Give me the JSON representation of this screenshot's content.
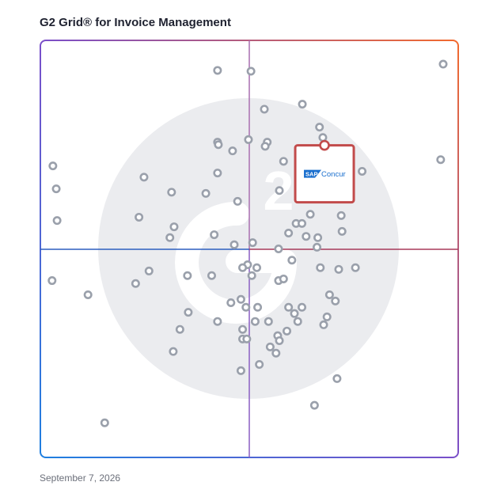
{
  "title": "G2 Grid® for Invoice Management",
  "date": "September 7, 2026",
  "colors": {
    "frame_left": "#1e7fe0",
    "frame_mid": "#7a4fc9",
    "frame_right": "#f26a2e",
    "quadrant_line_top": "#a65aa3",
    "quadrant_line_bottom": "#9b3aa0",
    "quadrant_line_h_left": "#2d5fbf",
    "quadrant_line_h_right": "#a83a5a",
    "point": "#9aa0ab",
    "watermark": "#ebecef",
    "highlight": "#c24b4b",
    "logo_blue": "#1a6fce"
  },
  "highlight": {
    "label_a": "SAP",
    "label_b": "Concur",
    "x": 68,
    "y": 68
  },
  "chart_data": {
    "type": "scatter",
    "title": "G2 Grid® for Invoice Management",
    "xlabel": "",
    "ylabel": "",
    "xlim": [
      0,
      100
    ],
    "ylim": [
      0,
      100
    ],
    "quadrant_split": {
      "x": 50,
      "y": 50
    },
    "grid": false,
    "watermark": "G2 logo",
    "points": [
      {
        "x": 42.4,
        "y": 92.8
      },
      {
        "x": 50.4,
        "y": 92.6
      },
      {
        "x": 96.4,
        "y": 94.3
      },
      {
        "x": 53.6,
        "y": 83.5
      },
      {
        "x": 62.7,
        "y": 84.7
      },
      {
        "x": 66.8,
        "y": 79.2
      },
      {
        "x": 67.6,
        "y": 76.7
      },
      {
        "x": 42.4,
        "y": 75.6
      },
      {
        "x": 42.6,
        "y": 75.0
      },
      {
        "x": 49.8,
        "y": 76.2
      },
      {
        "x": 54.3,
        "y": 75.6
      },
      {
        "x": 53.8,
        "y": 74.6
      },
      {
        "x": 46.0,
        "y": 73.5
      },
      {
        "x": 58.2,
        "y": 71.0
      },
      {
        "x": 95.8,
        "y": 71.4
      },
      {
        "x": 3.0,
        "y": 69.9
      },
      {
        "x": 24.8,
        "y": 67.2
      },
      {
        "x": 42.4,
        "y": 68.2
      },
      {
        "x": 77.0,
        "y": 68.6
      },
      {
        "x": 66.0,
        "y": 66.7
      },
      {
        "x": 68.2,
        "y": 66.3
      },
      {
        "x": 3.8,
        "y": 64.4
      },
      {
        "x": 31.4,
        "y": 63.6
      },
      {
        "x": 39.6,
        "y": 63.3
      },
      {
        "x": 57.2,
        "y": 64.0
      },
      {
        "x": 47.2,
        "y": 61.4
      },
      {
        "x": 23.6,
        "y": 57.6
      },
      {
        "x": 72.0,
        "y": 58.0
      },
      {
        "x": 64.6,
        "y": 58.3
      },
      {
        "x": 4.0,
        "y": 56.8
      },
      {
        "x": 32.0,
        "y": 55.3
      },
      {
        "x": 61.2,
        "y": 56.1
      },
      {
        "x": 62.6,
        "y": 56.1
      },
      {
        "x": 31.0,
        "y": 52.7
      },
      {
        "x": 41.6,
        "y": 53.4
      },
      {
        "x": 59.4,
        "y": 53.8
      },
      {
        "x": 63.6,
        "y": 53.0
      },
      {
        "x": 66.4,
        "y": 52.7
      },
      {
        "x": 72.2,
        "y": 54.2
      },
      {
        "x": 50.8,
        "y": 51.5
      },
      {
        "x": 46.4,
        "y": 51.0
      },
      {
        "x": 57.0,
        "y": 50.0
      },
      {
        "x": 66.2,
        "y": 50.4
      },
      {
        "x": 60.2,
        "y": 47.3
      },
      {
        "x": 49.6,
        "y": 46.2
      },
      {
        "x": 48.4,
        "y": 45.5
      },
      {
        "x": 51.8,
        "y": 45.5
      },
      {
        "x": 26.0,
        "y": 44.7
      },
      {
        "x": 67.0,
        "y": 45.5
      },
      {
        "x": 71.4,
        "y": 45.1
      },
      {
        "x": 75.4,
        "y": 45.5
      },
      {
        "x": 2.8,
        "y": 42.4
      },
      {
        "x": 35.2,
        "y": 43.6
      },
      {
        "x": 41.0,
        "y": 43.6
      },
      {
        "x": 50.6,
        "y": 43.6
      },
      {
        "x": 57.0,
        "y": 42.4
      },
      {
        "x": 58.2,
        "y": 42.8
      },
      {
        "x": 22.8,
        "y": 41.7
      },
      {
        "x": 11.4,
        "y": 39.0
      },
      {
        "x": 69.2,
        "y": 39.0
      },
      {
        "x": 70.6,
        "y": 37.5
      },
      {
        "x": 48.0,
        "y": 37.9
      },
      {
        "x": 45.6,
        "y": 37.1
      },
      {
        "x": 49.2,
        "y": 36.0
      },
      {
        "x": 52.0,
        "y": 36.0
      },
      {
        "x": 59.4,
        "y": 36.0
      },
      {
        "x": 62.6,
        "y": 36.0
      },
      {
        "x": 35.4,
        "y": 34.8
      },
      {
        "x": 60.8,
        "y": 34.5
      },
      {
        "x": 68.6,
        "y": 33.7
      },
      {
        "x": 42.4,
        "y": 32.6
      },
      {
        "x": 51.4,
        "y": 32.6
      },
      {
        "x": 54.6,
        "y": 32.6
      },
      {
        "x": 61.6,
        "y": 32.6
      },
      {
        "x": 67.8,
        "y": 31.8
      },
      {
        "x": 33.4,
        "y": 30.7
      },
      {
        "x": 48.4,
        "y": 30.7
      },
      {
        "x": 59.0,
        "y": 30.3
      },
      {
        "x": 56.8,
        "y": 29.2
      },
      {
        "x": 48.4,
        "y": 28.4
      },
      {
        "x": 49.4,
        "y": 28.4
      },
      {
        "x": 57.2,
        "y": 28.0
      },
      {
        "x": 55.0,
        "y": 26.5
      },
      {
        "x": 56.4,
        "y": 25.0
      },
      {
        "x": 31.8,
        "y": 25.4
      },
      {
        "x": 52.4,
        "y": 22.3
      },
      {
        "x": 48.0,
        "y": 20.8
      },
      {
        "x": 71.0,
        "y": 18.9
      },
      {
        "x": 65.6,
        "y": 12.5
      },
      {
        "x": 15.4,
        "y": 8.3
      }
    ]
  }
}
